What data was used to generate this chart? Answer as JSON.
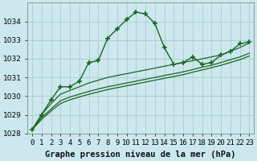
{
  "title": "Graphe pression niveau de la mer (hPa)",
  "bg_color": "#cce8ee",
  "grid_color": "#aacccc",
  "line_color": "#1a6620",
  "x_hours": [
    0,
    1,
    2,
    3,
    4,
    5,
    6,
    7,
    8,
    9,
    10,
    11,
    12,
    13,
    14,
    15,
    16,
    17,
    18,
    19,
    20,
    21,
    22,
    23
  ],
  "main_line": [
    1028.2,
    1029.0,
    1029.8,
    1030.5,
    1030.5,
    1030.8,
    1031.8,
    1031.9,
    1033.1,
    1033.6,
    1034.1,
    1034.5,
    1034.4,
    1033.9,
    1032.6,
    1031.7,
    1031.8,
    1032.1,
    1031.7,
    1031.8,
    1032.2,
    1032.4,
    1032.8,
    1032.9
  ],
  "smooth_line1": [
    1028.2,
    1029.0,
    1029.6,
    1030.1,
    1030.3,
    1030.5,
    1030.7,
    1030.85,
    1031.0,
    1031.1,
    1031.2,
    1031.3,
    1031.4,
    1031.5,
    1031.6,
    1031.7,
    1031.8,
    1031.9,
    1032.0,
    1032.1,
    1032.2,
    1032.4,
    1032.6,
    1032.85
  ],
  "smooth_line2": [
    1028.2,
    1028.85,
    1029.3,
    1029.75,
    1029.95,
    1030.1,
    1030.25,
    1030.38,
    1030.5,
    1030.6,
    1030.7,
    1030.8,
    1030.9,
    1031.0,
    1031.1,
    1031.2,
    1031.3,
    1031.42,
    1031.55,
    1031.65,
    1031.8,
    1031.95,
    1032.1,
    1032.3
  ],
  "smooth_line3": [
    1028.2,
    1028.75,
    1029.2,
    1029.6,
    1029.8,
    1029.95,
    1030.1,
    1030.22,
    1030.35,
    1030.45,
    1030.55,
    1030.65,
    1030.75,
    1030.85,
    1030.95,
    1031.05,
    1031.15,
    1031.28,
    1031.4,
    1031.52,
    1031.65,
    1031.8,
    1031.95,
    1032.15
  ],
  "ylim": [
    1028,
    1035
  ],
  "yticks": [
    1028,
    1029,
    1030,
    1031,
    1032,
    1033,
    1034
  ],
  "xticks": [
    0,
    1,
    2,
    3,
    4,
    5,
    6,
    7,
    8,
    9,
    10,
    11,
    12,
    13,
    14,
    15,
    16,
    17,
    18,
    19,
    20,
    21,
    22,
    23
  ],
  "xtick_labels": [
    "0",
    "1",
    "2",
    "3",
    "4",
    "5",
    "6",
    "7",
    "8",
    "9",
    "10",
    "11",
    "12",
    "13",
    "14",
    "15",
    "16",
    "17",
    "18",
    "19",
    "20",
    "21",
    "22",
    "23"
  ],
  "title_fontsize": 7.5,
  "tick_fontsize": 6.5
}
